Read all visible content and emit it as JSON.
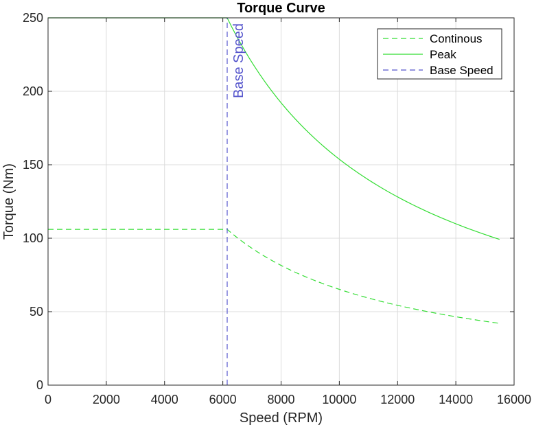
{
  "chart_data": {
    "type": "line",
    "title": "Torque Curve",
    "xlabel": "Speed (RPM)",
    "ylabel": "Torque (Nm)",
    "xlim": [
      0,
      16000
    ],
    "ylim": [
      0,
      250
    ],
    "xticks": [
      0,
      2000,
      4000,
      6000,
      8000,
      10000,
      12000,
      14000,
      16000
    ],
    "yticks": [
      0,
      50,
      100,
      150,
      200,
      250
    ],
    "xtick_labels": [
      "0",
      "2000",
      "4000",
      "6000",
      "8000",
      "10000",
      "12000",
      "14000",
      "16000"
    ],
    "ytick_labels": [
      "0",
      "50",
      "100",
      "150",
      "200",
      "250"
    ],
    "grid": true,
    "legend_position": "top-right",
    "base_speed": 6150,
    "max_speed": 15500,
    "series": [
      {
        "name": "Continous",
        "style": "dashed",
        "color": "#33dd33",
        "constant_torque": 106,
        "x": [
          0,
          6150,
          7000,
          8000,
          9000,
          10000,
          11000,
          12000,
          13000,
          14000,
          15000,
          15500
        ],
        "y": [
          106,
          106,
          93.1,
          81.5,
          72.4,
          65.2,
          59.3,
          54.3,
          50.1,
          46.6,
          43.5,
          42.1
        ]
      },
      {
        "name": "Peak",
        "style": "solid",
        "color": "#33dd33",
        "constant_torque": 250,
        "x": [
          0,
          6150,
          7000,
          8000,
          9000,
          10000,
          11000,
          12000,
          13000,
          14000,
          15000,
          15500
        ],
        "y": [
          250,
          250,
          219.6,
          192.2,
          170.8,
          153.8,
          139.8,
          128.1,
          118.3,
          109.8,
          102.5,
          99.2
        ]
      },
      {
        "name": "Base Speed",
        "style": "dashed",
        "color": "#5555cc",
        "x": [
          6150,
          6150
        ],
        "y": [
          0,
          250
        ]
      }
    ],
    "annotations": [
      {
        "text": "Base Speed",
        "x": 6150,
        "y": 250,
        "rotation": -90,
        "color": "#5555cc"
      }
    ]
  }
}
